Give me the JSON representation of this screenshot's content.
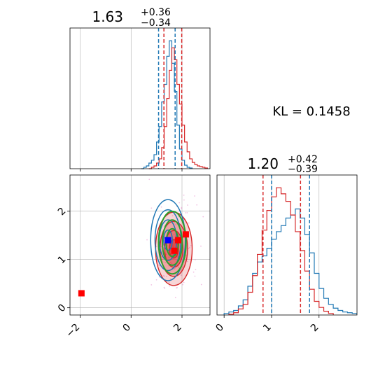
{
  "chart_data": {
    "type": "corner",
    "annotation": "KL = 0.1458",
    "colors": {
      "series_a": "#1f77b4",
      "series_b": "#d62728",
      "contour_green": "#2ca02c",
      "marker_red": "#ff0000",
      "marker_blue": "#0000ff",
      "grid": "#b0b0b0"
    },
    "grid": true,
    "param1": {
      "title_main": "1.63",
      "title_plus": "+0.36",
      "title_minus": "−0.34",
      "xlim": [
        -2.4,
        3.1
      ],
      "xticks": [
        -2,
        0,
        2
      ],
      "xtick_labels": [
        "−2",
        "0",
        "2"
      ],
      "quantiles_blue": [
        1.08,
        1.73
      ],
      "quantiles_red": [
        1.29,
        1.99
      ],
      "hist_blue": {
        "bins": [
          0.4,
          0.5,
          0.6,
          0.7,
          0.8,
          0.9,
          1.0,
          1.1,
          1.2,
          1.3,
          1.4,
          1.5,
          1.6,
          1.7,
          1.8,
          1.9,
          2.0,
          2.1,
          2.2,
          2.3,
          2.4
        ],
        "counts": [
          0,
          2,
          4,
          8,
          12,
          20,
          38,
          60,
          95,
          120,
          160,
          182,
          150,
          110,
          62,
          28,
          12,
          5,
          2,
          1
        ]
      },
      "hist_red": {
        "bins": [
          0.7,
          0.8,
          0.9,
          1.0,
          1.1,
          1.2,
          1.3,
          1.4,
          1.5,
          1.6,
          1.7,
          1.8,
          1.9,
          2.0,
          2.1,
          2.2,
          2.3,
          2.4,
          2.5,
          2.6,
          2.7,
          2.8,
          2.9,
          3.0
        ],
        "counts": [
          0,
          2,
          4,
          8,
          14,
          30,
          60,
          100,
          140,
          172,
          155,
          120,
          92,
          62,
          38,
          24,
          14,
          9,
          6,
          4,
          3,
          2,
          1
        ]
      }
    },
    "param2": {
      "title_main": "1.20",
      "title_plus": "+0.42",
      "title_minus": "−0.39",
      "xlim": [
        -0.15,
        2.8
      ],
      "xticks": [
        0,
        1,
        2
      ],
      "xtick_labels": [
        "0",
        "1",
        "2"
      ],
      "quantiles_blue": [
        1.0,
        1.8
      ],
      "quantiles_red": [
        0.82,
        1.61
      ],
      "hist_blue": {
        "bins": [
          0.0,
          0.1,
          0.2,
          0.3,
          0.4,
          0.5,
          0.6,
          0.7,
          0.8,
          0.9,
          1.0,
          1.1,
          1.2,
          1.3,
          1.4,
          1.5,
          1.6,
          1.7,
          1.8,
          1.9,
          2.0,
          2.1,
          2.2,
          2.3,
          2.4,
          2.5,
          2.6,
          2.7,
          2.8
        ],
        "counts": [
          2,
          4,
          6,
          12,
          20,
          38,
          55,
          70,
          78,
          88,
          100,
          110,
          118,
          128,
          132,
          140,
          128,
          106,
          82,
          55,
          35,
          22,
          14,
          9,
          6,
          4,
          3,
          2
        ]
      },
      "hist_red": {
        "bins": [
          0.1,
          0.2,
          0.3,
          0.4,
          0.5,
          0.6,
          0.7,
          0.8,
          0.9,
          1.0,
          1.1,
          1.2,
          1.3,
          1.4,
          1.5,
          1.6,
          1.7,
          1.8,
          1.9,
          2.0,
          2.1,
          2.2,
          2.3
        ],
        "counts": [
          1,
          3,
          8,
          14,
          30,
          52,
          80,
          112,
          138,
          156,
          168,
          160,
          150,
          132,
          110,
          85,
          58,
          34,
          18,
          10,
          5,
          2
        ]
      }
    },
    "joint": {
      "xlim": [
        -2.4,
        3.1
      ],
      "ylim": [
        -0.15,
        2.75
      ],
      "xticks": [
        -2,
        0,
        2
      ],
      "yticks": [
        0,
        1,
        2
      ],
      "ytick_labels": [
        "0",
        "1",
        "2"
      ],
      "blue_center": [
        1.45,
        1.4
      ],
      "blue_sigmas": [
        0.34,
        0.42
      ],
      "red_center": [
        1.68,
        1.22
      ],
      "red_sigmas": [
        0.36,
        0.38
      ],
      "green_center": [
        1.62,
        1.35
      ],
      "green_sigmas": [
        0.3,
        0.36
      ],
      "markers_red": [
        [
          -1.95,
          0.3
        ],
        [
          1.7,
          1.18
        ],
        [
          2.15,
          1.52
        ],
        [
          1.85,
          1.4
        ]
      ],
      "markers_blue": [
        [
          1.45,
          1.4
        ]
      ]
    }
  }
}
